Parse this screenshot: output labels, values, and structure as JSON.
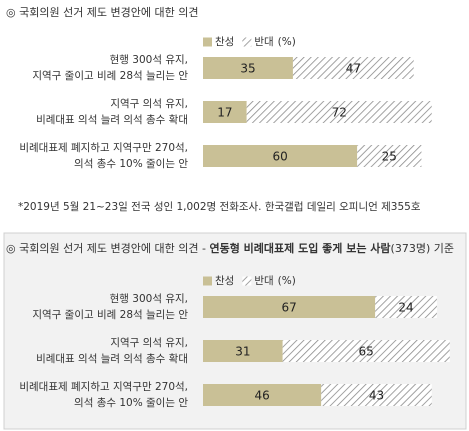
{
  "chart_data": [
    {
      "type": "bar",
      "orientation": "horizontal",
      "stacked": true,
      "title": "◎  국회의원 선거 제도 변경안에 대한 의견",
      "unit": "(%)",
      "categories": [
        [
          "현행 300석 유지,",
          "지역구 줄이고 비례 28석 늘리는 안"
        ],
        [
          "지역구 의석 유지,",
          "비례대표 의석 늘려 의석 총수 확대"
        ],
        [
          "비례대표제 폐지하고 지역구만 270석,",
          "의석 총수 10% 줄이는 안"
        ]
      ],
      "series": [
        {
          "name": "찬성",
          "color": "#c9c096",
          "hatch": false,
          "values": [
            35,
            17,
            60
          ]
        },
        {
          "name": "반대",
          "color": "#8a8a8a",
          "hatch": true,
          "values": [
            47,
            72,
            25
          ]
        }
      ],
      "note": "*2019년 5월 21~23일 전국 성인 1,002명 전화조사. 한국갤럽 데일리 오피니언 제355호"
    },
    {
      "type": "bar",
      "orientation": "horizontal",
      "stacked": true,
      "title": "◎  국회의원 선거 제도 변경안에 대한 의견 - ",
      "title_emphasis": "연동형 비례대표제 도입 좋게 보는 사람",
      "title_suffix": "(373명) 기준",
      "unit": "(%)",
      "categories": [
        [
          "현행 300석 유지,",
          "지역구 줄이고 비례 28석 늘리는 안"
        ],
        [
          "지역구 의석 유지,",
          "비례대표 의석 늘려 의석 총수 확대"
        ],
        [
          "비례대표제 폐지하고 지역구만 270석,",
          "의석 총수 10% 줄이는 안"
        ]
      ],
      "series": [
        {
          "name": "찬성",
          "color": "#c9c096",
          "hatch": false,
          "values": [
            67,
            31,
            46
          ]
        },
        {
          "name": "반대",
          "color": "#8a8a8a",
          "hatch": true,
          "values": [
            24,
            65,
            43
          ]
        }
      ]
    }
  ]
}
